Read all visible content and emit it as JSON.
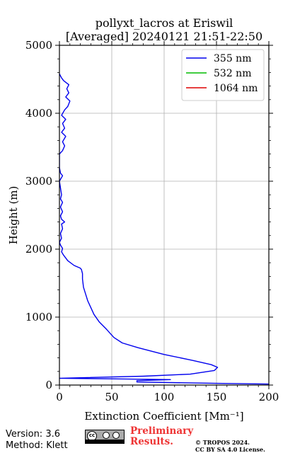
{
  "chart_data": {
    "type": "line",
    "title_line1": "pollyxt_lacros at Eriswil",
    "title_line2": "[Averaged] 20240121 21:51-22:50",
    "xlabel": "Extinction Coefficient [Mm⁻¹]",
    "ylabel": "Height (m)",
    "xlim": [
      0,
      200
    ],
    "ylim": [
      0,
      5000
    ],
    "xticks": [
      "0",
      "50",
      "100",
      "150",
      "200"
    ],
    "yticks": [
      "0",
      "1000",
      "2000",
      "3000",
      "4000",
      "5000"
    ],
    "grid": true,
    "legend_position": "top-right",
    "series": [
      {
        "name": "355 nm",
        "color": "#0000ee",
        "points": [
          [
            200,
            15
          ],
          [
            150,
            25
          ],
          [
            74,
            45
          ],
          [
            74,
            65
          ],
          [
            106,
            80
          ],
          [
            62,
            90
          ],
          [
            0,
            100
          ],
          [
            80,
            130
          ],
          [
            125,
            160
          ],
          [
            148,
            215
          ],
          [
            151,
            260
          ],
          [
            145,
            300
          ],
          [
            128,
            360
          ],
          [
            100,
            450
          ],
          [
            75,
            550
          ],
          [
            60,
            620
          ],
          [
            52,
            700
          ],
          [
            45,
            820
          ],
          [
            38,
            930
          ],
          [
            33,
            1040
          ],
          [
            30,
            1140
          ],
          [
            27,
            1240
          ],
          [
            25,
            1340
          ],
          [
            23,
            1440
          ],
          [
            22,
            1560
          ],
          [
            22,
            1640
          ],
          [
            21,
            1700
          ],
          [
            20,
            1720
          ],
          [
            14,
            1760
          ],
          [
            8,
            1830
          ],
          [
            4,
            1910
          ],
          [
            2,
            1960
          ],
          [
            3,
            2010
          ],
          [
            1,
            2060
          ],
          [
            0,
            2100
          ],
          [
            2,
            2160
          ],
          [
            1,
            2230
          ],
          [
            3,
            2300
          ],
          [
            2,
            2370
          ],
          [
            5,
            2400
          ],
          [
            2,
            2440
          ],
          [
            1,
            2490
          ],
          [
            3,
            2550
          ],
          [
            1,
            2620
          ],
          [
            3,
            2690
          ],
          [
            1,
            2740
          ],
          [
            2,
            2800
          ],
          [
            1,
            2900
          ],
          [
            0,
            3000
          ],
          [
            3,
            3080
          ],
          [
            1,
            3120
          ],
          [
            0,
            3200
          ],
          [
            0,
            3400
          ],
          [
            3,
            3450
          ],
          [
            5,
            3520
          ],
          [
            3,
            3580
          ],
          [
            6,
            3660
          ],
          [
            2,
            3720
          ],
          [
            5,
            3780
          ],
          [
            3,
            3850
          ],
          [
            6,
            3910
          ],
          [
            2,
            3970
          ],
          [
            5,
            4050
          ],
          [
            8,
            4100
          ],
          [
            10,
            4180
          ],
          [
            6,
            4240
          ],
          [
            9,
            4300
          ],
          [
            7,
            4360
          ],
          [
            9,
            4420
          ],
          [
            4,
            4480
          ],
          [
            2,
            4520
          ],
          [
            0,
            4580
          ]
        ]
      },
      {
        "name": "532 nm",
        "color": "#00bb00",
        "points": []
      },
      {
        "name": "1064 nm",
        "color": "#dd0000",
        "points": []
      }
    ]
  },
  "footer": {
    "version": "Version: 3.6",
    "method": "Method: Klett",
    "prelim_line1": "Preliminary",
    "prelim_line2": "Results.",
    "copyright_line1": "© TROPOS 2024.",
    "copyright_line2": "CC BY SA 4.0 License."
  }
}
